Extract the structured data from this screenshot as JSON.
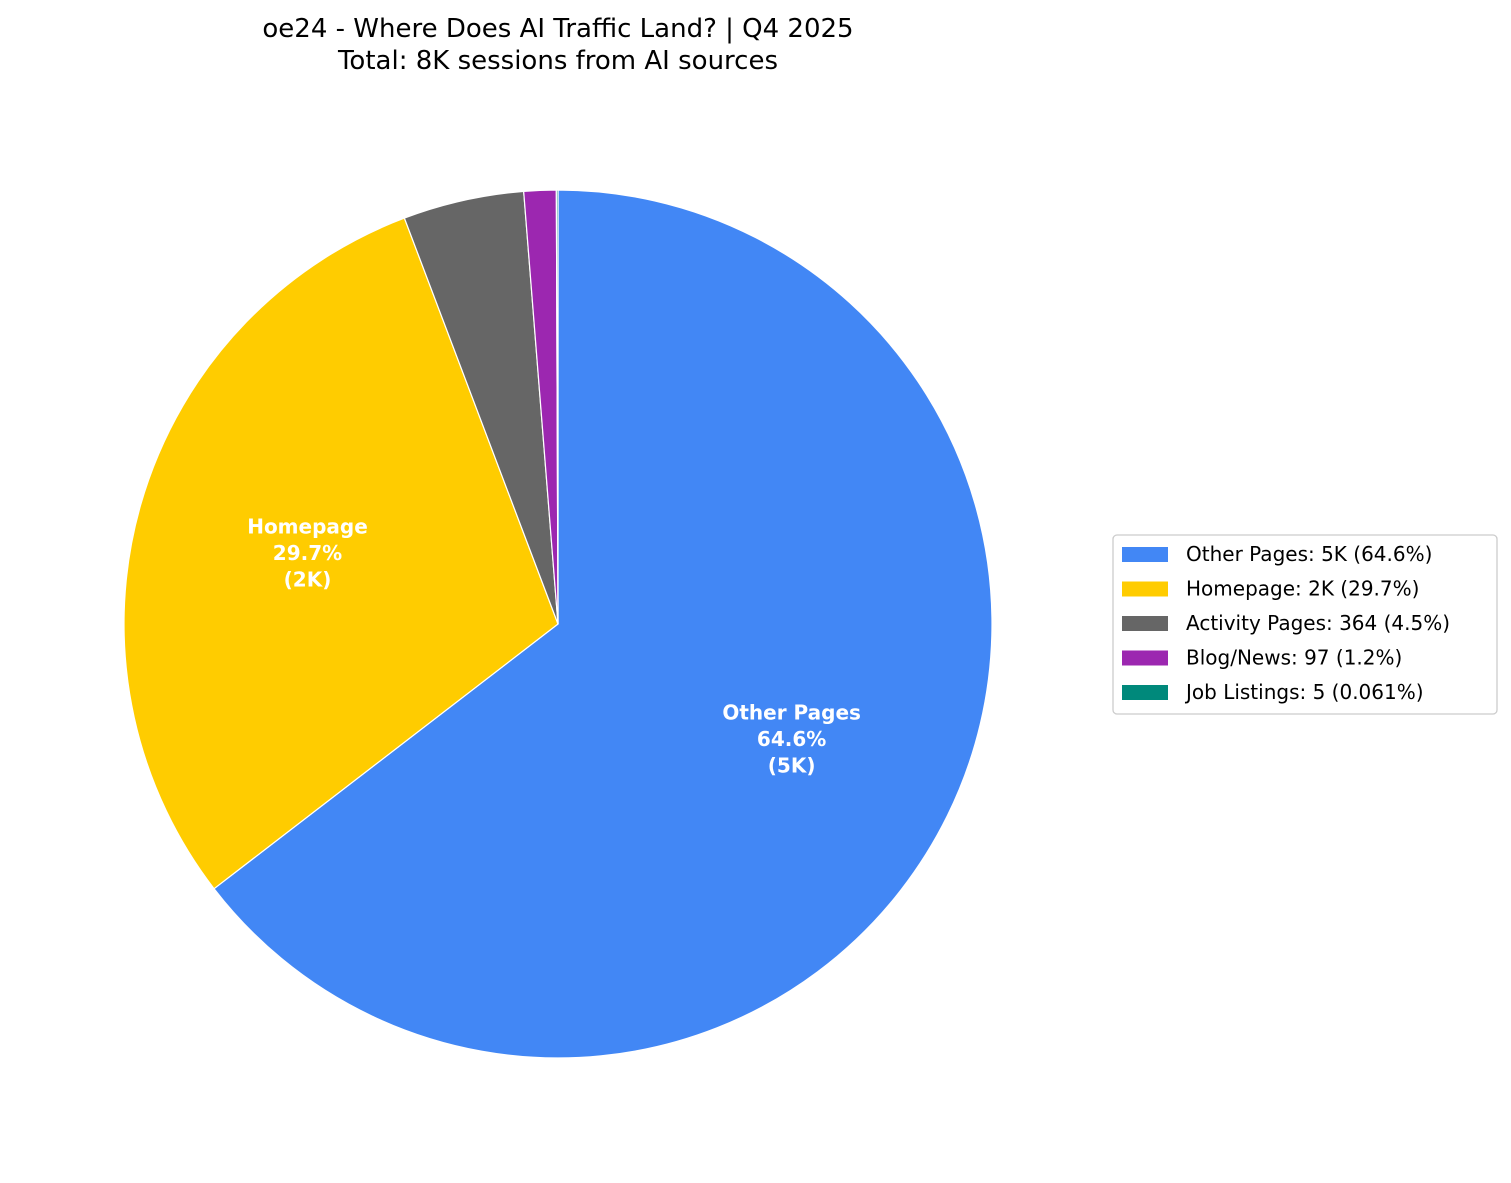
{
  "chart_data": {
    "type": "pie",
    "title": "oe24 - Where Does AI Traffic Land? | Q4 2025",
    "subtitle": "Total: 8K sessions from AI sources",
    "start_angle": "top",
    "direction": "clockwise",
    "legend_position": "right",
    "slices": [
      {
        "name": "Other Pages",
        "value": 5,
        "percent": 64.6,
        "color": "#4287f5",
        "label_lines": [
          "Other Pages",
          "64.6%",
          "(5K)"
        ],
        "legend": "Other Pages: 5K (64.6%)"
      },
      {
        "name": "Homepage",
        "value": 2,
        "percent": 29.7,
        "color": "#ffcc00",
        "label_lines": [
          "Homepage",
          "29.7%",
          "(2K)"
        ],
        "legend": "Homepage: 2K (29.7%)"
      },
      {
        "name": "Activity Pages",
        "value": 364,
        "percent": 4.5,
        "color": "#666666",
        "label_lines": [],
        "legend": "Activity Pages: 364 (4.5%)"
      },
      {
        "name": "Blog/News",
        "value": 97,
        "percent": 1.2,
        "color": "#9c27b0",
        "label_lines": [],
        "legend": "Blog/News: 97 (1.2%)"
      },
      {
        "name": "Job Listings",
        "value": 5,
        "percent": 0.061,
        "color": "#00897b",
        "label_lines": [],
        "legend": "Job Listings: 5 (0.061%)"
      }
    ]
  }
}
